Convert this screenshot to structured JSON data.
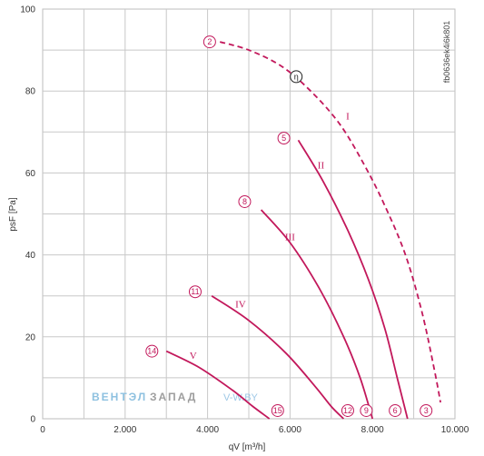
{
  "chart_data": {
    "type": "line",
    "xlabel": "qV [m³/h]",
    "ylabel": "psF [Pa]",
    "xlim": [
      0,
      10000
    ],
    "ylim": [
      0,
      100
    ],
    "x_ticks": [
      "0",
      "2.000",
      "4.000",
      "6.000",
      "8.000",
      "10.000"
    ],
    "y_ticks": [
      "0",
      "20",
      "40",
      "60",
      "80",
      "100"
    ],
    "grid": true,
    "code_label": "fb0636ek4i6k801",
    "eta_marker": {
      "text": "η",
      "x": 6150,
      "y": 83.5
    },
    "watermark": {
      "part1": "ВЕНТЭЛ",
      "part2": "ЗАПАД",
      "part3": "V-W.BY"
    },
    "series": [
      {
        "name": "I",
        "style": "dashed",
        "x": [
          4300,
          5000,
          5800,
          6500,
          7200,
          7800,
          8300,
          8800,
          9200,
          9500,
          9650
        ],
        "y": [
          92,
          90,
          86,
          80,
          72,
          62,
          52,
          40,
          26,
          12,
          4
        ],
        "label_pos": [
          7400,
          74
        ],
        "start_marker": {
          "text": "2",
          "x": 4050,
          "y": 92
        },
        "end_marker": {
          "text": "3",
          "x": 9300,
          "y": 2
        }
      },
      {
        "name": "II",
        "style": "solid",
        "x": [
          6200,
          6800,
          7400,
          7900,
          8300,
          8600,
          8850
        ],
        "y": [
          68,
          58,
          46,
          34,
          22,
          10,
          0
        ],
        "label_pos": [
          6750,
          62
        ],
        "start_marker": {
          "text": "5",
          "x": 5850,
          "y": 68.5
        },
        "end_marker": {
          "text": "6",
          "x": 8550,
          "y": 2
        }
      },
      {
        "name": "III",
        "style": "solid",
        "x": [
          5300,
          6000,
          6700,
          7300,
          7700,
          8000
        ],
        "y": [
          51,
          43,
          32,
          20,
          10,
          0
        ],
        "label_pos": [
          6000,
          44.5
        ],
        "start_marker": {
          "text": "8",
          "x": 4900,
          "y": 53
        },
        "end_marker": {
          "text": "9",
          "x": 7850,
          "y": 2
        }
      },
      {
        "name": "IV",
        "style": "solid",
        "x": [
          4100,
          5000,
          5900,
          6600,
          7000,
          7300
        ],
        "y": [
          30,
          24,
          16,
          8,
          3,
          0
        ],
        "label_pos": [
          4800,
          28
        ],
        "start_marker": {
          "text": "11",
          "x": 3700,
          "y": 31
        },
        "end_marker": {
          "text": "12",
          "x": 7400,
          "y": 2
        }
      },
      {
        "name": "V",
        "style": "solid",
        "x": [
          3000,
          3800,
          4600,
          5100,
          5500
        ],
        "y": [
          16.5,
          12.5,
          7,
          3,
          0
        ],
        "label_pos": [
          3650,
          15.5
        ],
        "start_marker": {
          "text": "14",
          "x": 2650,
          "y": 16.5
        },
        "end_marker": {
          "text": "15",
          "x": 5700,
          "y": 2
        }
      }
    ]
  }
}
